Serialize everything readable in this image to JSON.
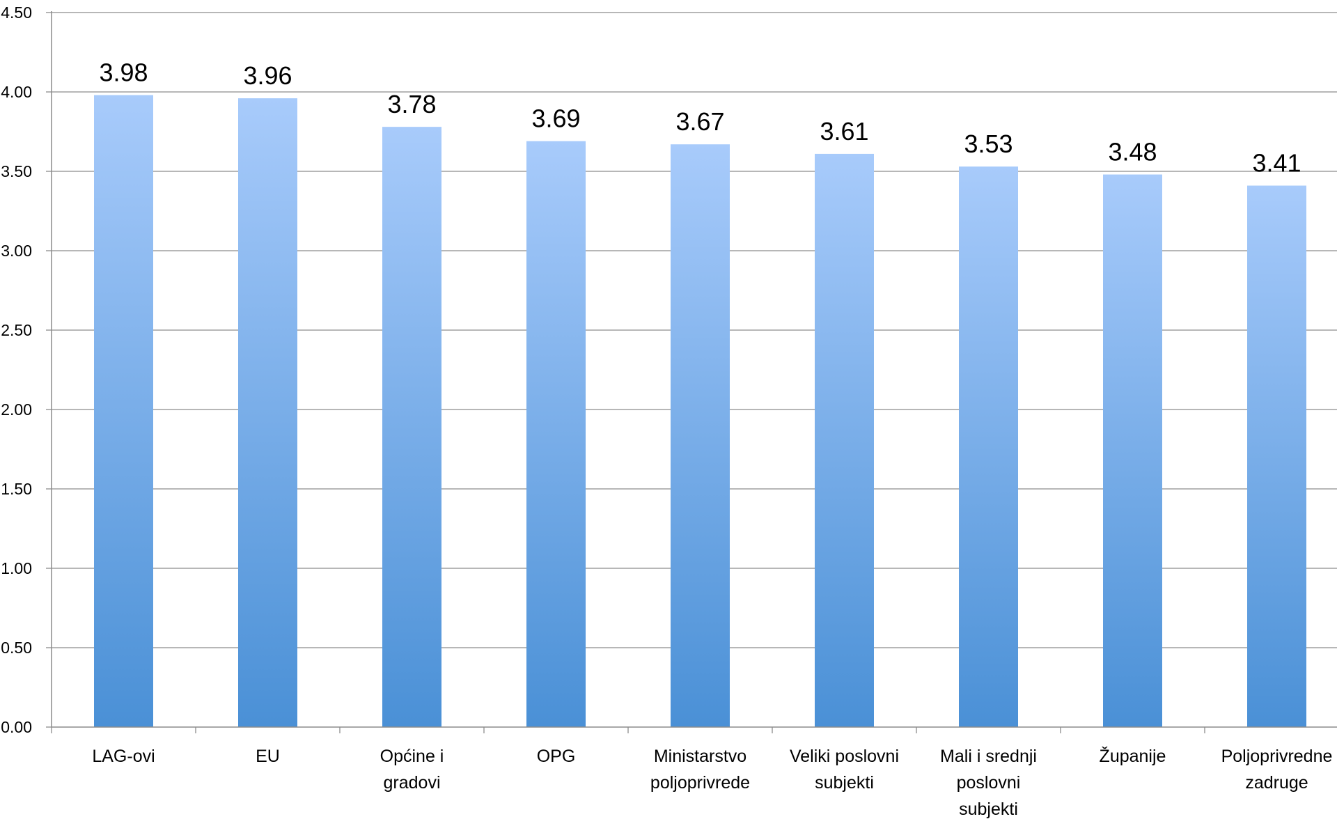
{
  "chart_data": {
    "type": "bar",
    "title": "",
    "xlabel": "",
    "ylabel": "",
    "ylim": [
      0,
      4.5
    ],
    "yticks": [
      "0.00",
      "0.50",
      "1.00",
      "1.50",
      "2.00",
      "2.50",
      "3.00",
      "3.50",
      "4.00",
      "4.50"
    ],
    "grid": true,
    "legend": "none",
    "categories": [
      "LAG-ovi",
      "EU",
      "Općine i gradovi",
      "OPG",
      "Ministarstvo poljoprivrede",
      "Veliki poslovni subjekti",
      "Mali i srednji poslovni subjekti",
      "Županije",
      "Poljoprivredne zadruge"
    ],
    "category_lines": [
      [
        "LAG-ovi"
      ],
      [
        "EU"
      ],
      [
        "Općine i",
        "gradovi"
      ],
      [
        "OPG"
      ],
      [
        "Ministarstvo",
        "poljoprivrede"
      ],
      [
        "Veliki poslovni",
        "subjekti"
      ],
      [
        "Mali i srednji",
        "poslovni",
        "subjekti"
      ],
      [
        "Županije"
      ],
      [
        "Poljoprivredne",
        "zadruge"
      ]
    ],
    "values": [
      3.98,
      3.96,
      3.78,
      3.69,
      3.67,
      3.61,
      3.53,
      3.48,
      3.41
    ],
    "data_labels": [
      "3.98",
      "3.96",
      "3.78",
      "3.69",
      "3.67",
      "3.61",
      "3.53",
      "3.48",
      "3.41"
    ],
    "colors": {
      "bar_top": "#a8cbfb",
      "bar_bottom": "#4a90d6",
      "grid": "#8c8c8c",
      "axis": "#8c8c8c",
      "text": "#000000"
    }
  }
}
